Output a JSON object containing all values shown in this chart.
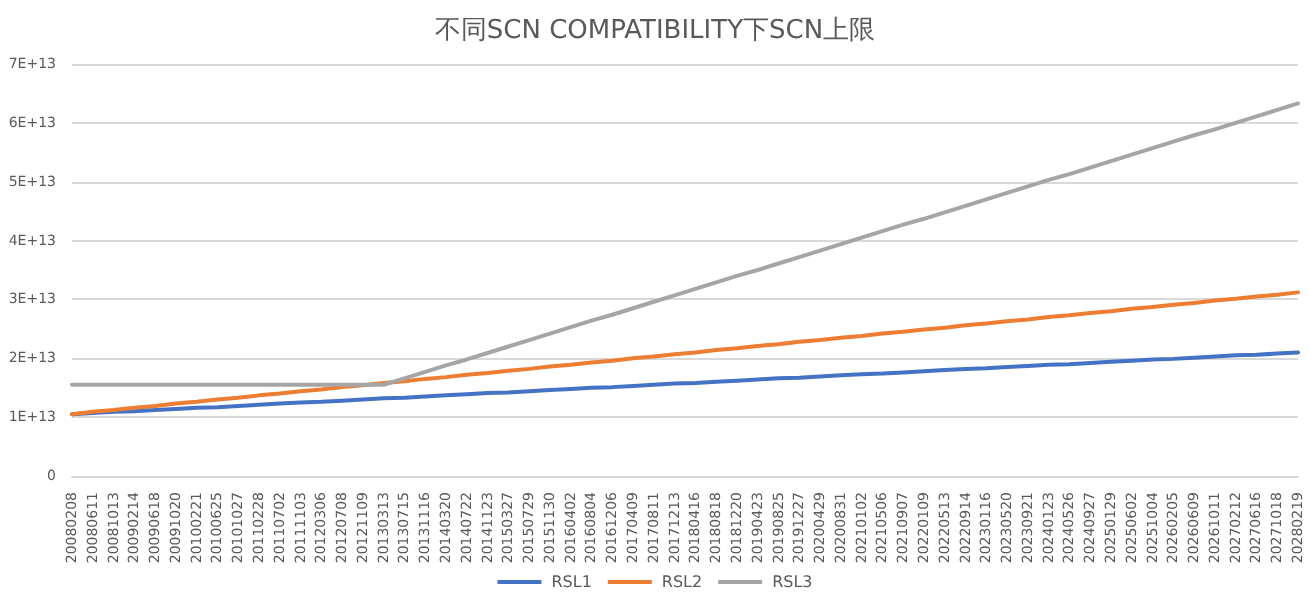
{
  "chart_data": {
    "type": "line",
    "title": "不同SCN COMPATIBILITY下SCN上限",
    "categories": [
      "20080208",
      "20080611",
      "20081013",
      "20090214",
      "20090618",
      "20091020",
      "20100221",
      "20100625",
      "20101027",
      "20110228",
      "20110702",
      "20111103",
      "20120306",
      "20120708",
      "20121109",
      "20130313",
      "20130715",
      "20131116",
      "20140320",
      "20140722",
      "20141123",
      "20150327",
      "20150729",
      "20151130",
      "20160402",
      "20160804",
      "20161206",
      "20170409",
      "20170811",
      "20171213",
      "20180416",
      "20180818",
      "20181220",
      "20190423",
      "20190825",
      "20191227",
      "20200429",
      "20200831",
      "20210102",
      "20210506",
      "20210907",
      "20220109",
      "20220513",
      "20220914",
      "20230116",
      "20230520",
      "20230921",
      "20240123",
      "20240526",
      "20240927",
      "20250129",
      "20250602",
      "20251004",
      "20260205",
      "20260609",
      "20261011",
      "20270212",
      "20270616",
      "20271018",
      "20280219"
    ],
    "series": [
      {
        "name": "RSL1",
        "color": "#4472c4",
        "values": [
          10500000000000.0,
          10700000000000.0,
          10900000000000.0,
          11000000000000.0,
          11200000000000.0,
          11400000000000.0,
          11600000000000.0,
          11700000000000.0,
          11900000000000.0,
          12100000000000.0,
          12300000000000.0,
          12500000000000.0,
          12600000000000.0,
          12800000000000.0,
          13000000000000.0,
          13200000000000.0,
          13300000000000.0,
          13500000000000.0,
          13700000000000.0,
          13900000000000.0,
          14100000000000.0,
          14200000000000.0,
          14400000000000.0,
          14600000000000.0,
          14800000000000.0,
          15000000000000.0,
          15100000000000.0,
          15300000000000.0,
          15500000000000.0,
          15700000000000.0,
          15800000000000.0,
          16000000000000.0,
          16200000000000.0,
          16400000000000.0,
          16600000000000.0,
          16700000000000.0,
          16900000000000.0,
          17100000000000.0,
          17300000000000.0,
          17400000000000.0,
          17600000000000.0,
          17800000000000.0,
          18000000000000.0,
          18200000000000.0,
          18300000000000.0,
          18500000000000.0,
          18700000000000.0,
          18900000000000.0,
          19000000000000.0,
          19200000000000.0,
          19400000000000.0,
          19600000000000.0,
          19800000000000.0,
          19900000000000.0,
          20100000000000.0,
          20300000000000.0,
          20500000000000.0,
          20600000000000.0,
          20800000000000.0,
          21000000000000.0
        ]
      },
      {
        "name": "RSL2",
        "color": "#ed7d31",
        "values": [
          10500000000000.0,
          10900000000000.0,
          11200000000000.0,
          11600000000000.0,
          11900000000000.0,
          12300000000000.0,
          12600000000000.0,
          13000000000000.0,
          13300000000000.0,
          13700000000000.0,
          14000000000000.0,
          14400000000000.0,
          14700000000000.0,
          15100000000000.0,
          15400000000000.0,
          15800000000000.0,
          16100000000000.0,
          16500000000000.0,
          16800000000000.0,
          17200000000000.0,
          17500000000000.0,
          17900000000000.0,
          18200000000000.0,
          18600000000000.0,
          18900000000000.0,
          19300000000000.0,
          19600000000000.0,
          20000000000000.0,
          20300000000000.0,
          20700000000000.0,
          21000000000000.0,
          21400000000000.0,
          21700000000000.0,
          22100000000000.0,
          22400000000000.0,
          22800000000000.0,
          23100000000000.0,
          23500000000000.0,
          23800000000000.0,
          24200000000000.0,
          24500000000000.0,
          24900000000000.0,
          25200000000000.0,
          25600000000000.0,
          25900000000000.0,
          26300000000000.0,
          26600000000000.0,
          27000000000000.0,
          27300000000000.0,
          27700000000000.0,
          28000000000000.0,
          28400000000000.0,
          28700000000000.0,
          29100000000000.0,
          29400000000000.0,
          29800000000000.0,
          30100000000000.0,
          30500000000000.0,
          30800000000000.0,
          31200000000000.0
        ]
      },
      {
        "name": "RSL3",
        "color": "#a5a5a5",
        "values": [
          15500000000000.0,
          15500000000000.0,
          15500000000000.0,
          15500000000000.0,
          15500000000000.0,
          15500000000000.0,
          15500000000000.0,
          15500000000000.0,
          15500000000000.0,
          15500000000000.0,
          15500000000000.0,
          15500000000000.0,
          15500000000000.0,
          15500000000000.0,
          15500000000000.0,
          15500000000000.0,
          16600000000000.0,
          17700000000000.0,
          18800000000000.0,
          19800000000000.0,
          20900000000000.0,
          22000000000000.0,
          23100000000000.0,
          24200000000000.0,
          25300000000000.0,
          26400000000000.0,
          27400000000000.0,
          28500000000000.0,
          29600000000000.0,
          30700000000000.0,
          31800000000000.0,
          32900000000000.0,
          34000000000000.0,
          35000000000000.0,
          36100000000000.0,
          37200000000000.0,
          38300000000000.0,
          39400000000000.0,
          40500000000000.0,
          41600000000000.0,
          42700000000000.0,
          43700000000000.0,
          44800000000000.0,
          45900000000000.0,
          47000000000000.0,
          48100000000000.0,
          49200000000000.0,
          50300000000000.0,
          51300000000000.0,
          52400000000000.0,
          53500000000000.0,
          54600000000000.0,
          55700000000000.0,
          56800000000000.0,
          57900000000000.0,
          58900000000000.0,
          60000000000000.0,
          61100000000000.0,
          62200000000000.0,
          63300000000000.0
        ]
      }
    ],
    "ylim": [
      0,
      70000000000000.0
    ],
    "yticks": [
      0,
      {
        "value": 10000000000000.0,
        "label": "1E+13"
      },
      {
        "value": 20000000000000.0,
        "label": "2E+13"
      },
      {
        "value": 30000000000000.0,
        "label": "3E+13"
      },
      {
        "value": 40000000000000.0,
        "label": "4E+13"
      },
      {
        "value": 50000000000000.0,
        "label": "5E+13"
      },
      {
        "value": 60000000000000.0,
        "label": "6E+13"
      },
      {
        "value": 70000000000000.0,
        "label": "7E+13"
      }
    ],
    "grid": "y",
    "legend": "bottom",
    "marker": "none",
    "line_style": "solid"
  }
}
